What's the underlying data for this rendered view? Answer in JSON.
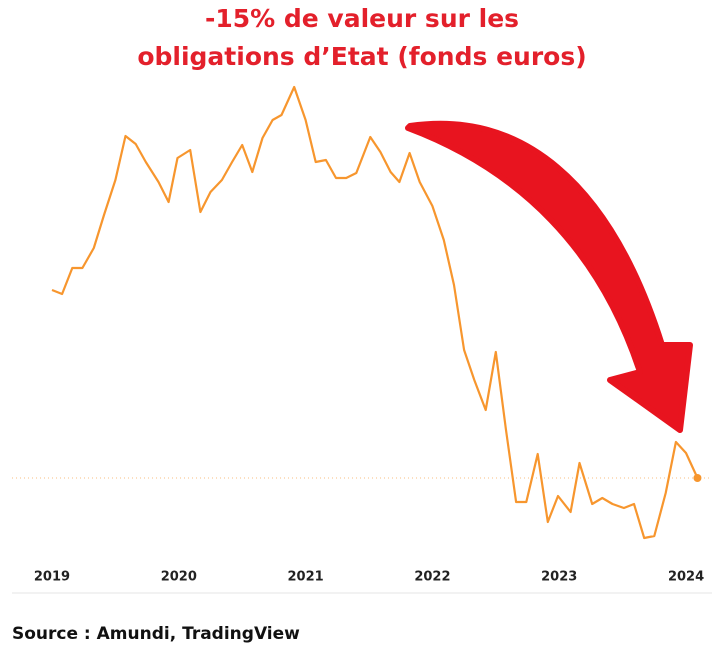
{
  "chart_data": {
    "type": "line",
    "title": [
      "-15% de valeur sur les",
      "obligations d’Etat (fonds euros)"
    ],
    "source": "Source : Amundi, TradingView",
    "x": [
      2019.0,
      2019.08,
      2019.16,
      2019.24,
      2019.33,
      2019.41,
      2019.5,
      2019.58,
      2019.66,
      2019.74,
      2019.84,
      2019.92,
      2019.99,
      2020.09,
      2020.17,
      2020.25,
      2020.34,
      2020.42,
      2020.5,
      2020.58,
      2020.66,
      2020.74,
      2020.81,
      2020.91,
      2021.0,
      2021.08,
      2021.16,
      2021.24,
      2021.32,
      2021.4,
      2021.51,
      2021.59,
      2021.67,
      2021.74,
      2021.82,
      2021.9,
      2022.0,
      2022.09,
      2022.17,
      2022.25,
      2022.33,
      2022.42,
      2022.5,
      2022.58,
      2022.66,
      2022.74,
      2022.83,
      2022.91,
      2022.99,
      2023.09,
      2023.16,
      2023.26,
      2023.34,
      2023.42,
      2023.51,
      2023.59,
      2023.67,
      2023.75,
      2023.84,
      2023.92,
      2024.0,
      2024.09
    ],
    "series": [
      {
        "name": "Obligations d’Etat",
        "color": "#f7962e",
        "values": [
          270,
          266,
          292,
          292,
          312,
          345,
          380,
          424,
          416,
          398,
          378,
          358,
          402,
          410,
          348,
          368,
          380,
          398,
          415,
          388,
          422,
          440,
          445,
          473,
          440,
          398,
          400,
          382,
          382,
          387,
          423,
          408,
          388,
          378,
          407,
          378,
          354,
          320,
          275,
          210,
          180,
          150,
          208,
          130,
          58,
          58,
          106,
          38,
          64,
          48,
          97,
          56,
          62,
          56,
          52,
          56,
          22,
          24,
          67,
          118,
          107,
          82
        ]
      }
    ],
    "xlim": [
      2018.9,
      2024.2
    ],
    "xticks": [
      2019,
      2020,
      2021,
      2022,
      2023,
      2024
    ],
    "ylim": [
      0,
      480
    ]
  }
}
